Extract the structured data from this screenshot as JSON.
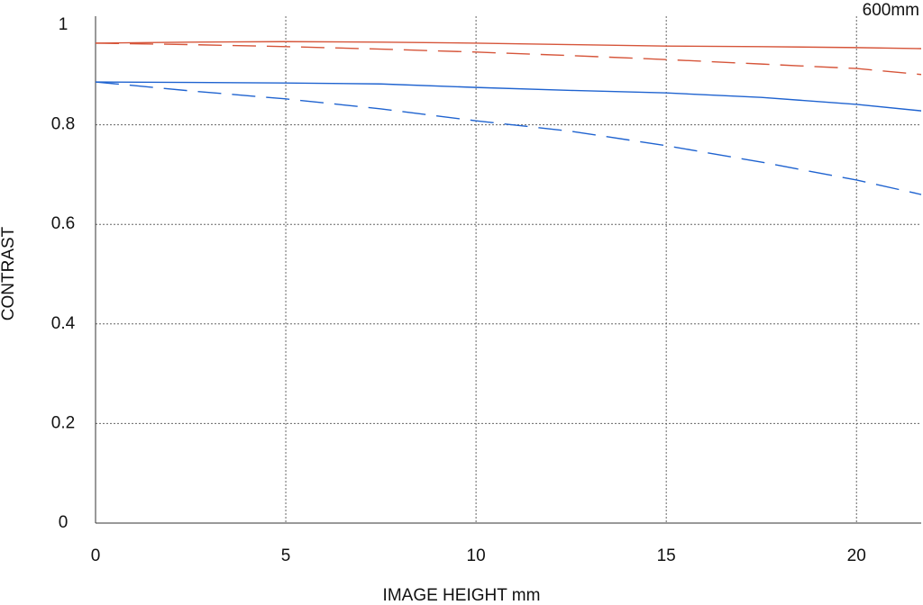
{
  "chart_data": {
    "type": "line",
    "title": "600mm",
    "xlabel": "IMAGE HEIGHT  mm",
    "ylabel": "CONTRAST",
    "x": [
      0,
      2.5,
      5,
      7.5,
      10,
      12.5,
      15,
      17.5,
      20,
      21.7
    ],
    "series": [
      {
        "color": "#d6553a",
        "line_style": "solid",
        "values": [
          0.964,
          0.966,
          0.967,
          0.966,
          0.964,
          0.961,
          0.958,
          0.957,
          0.955,
          0.953
        ]
      },
      {
        "color": "#d6553a",
        "line_style": "dashed",
        "values": [
          0.964,
          0.961,
          0.957,
          0.952,
          0.946,
          0.939,
          0.931,
          0.922,
          0.913,
          0.901
        ]
      },
      {
        "color": "#1f63d0",
        "line_style": "solid",
        "values": [
          0.886,
          0.885,
          0.884,
          0.882,
          0.875,
          0.869,
          0.864,
          0.855,
          0.841,
          0.828
        ]
      },
      {
        "color": "#1f63d0",
        "line_style": "dashed",
        "values": [
          0.886,
          0.868,
          0.852,
          0.832,
          0.808,
          0.787,
          0.758,
          0.725,
          0.689,
          0.66
        ]
      }
    ],
    "xlim": [
      0,
      21.7
    ],
    "xticks": [
      0,
      5,
      10,
      15,
      20
    ],
    "ylim": [
      0,
      1
    ],
    "yticks": [
      0,
      0.2,
      0.4,
      0.6,
      0.8,
      1
    ],
    "grid": true
  }
}
